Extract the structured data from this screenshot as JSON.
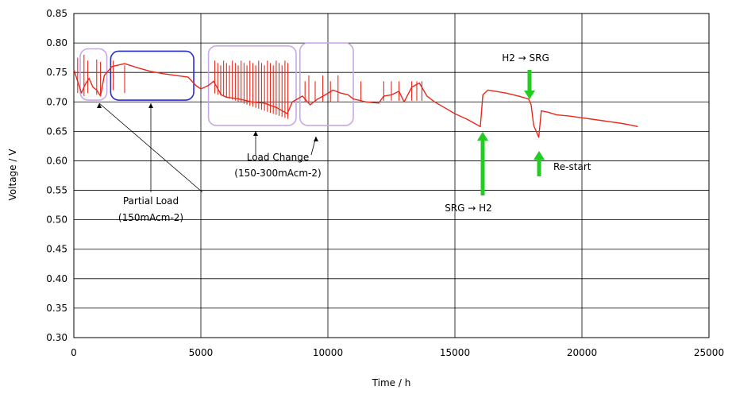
{
  "chart_data": {
    "type": "line",
    "title": "",
    "xlabel": "Time / h",
    "ylabel": "Voltage / V",
    "xlim": [
      0,
      25000
    ],
    "ylim": [
      0.3,
      0.85
    ],
    "x_ticks": [
      "0",
      "5000",
      "10000",
      "15000",
      "20000",
      "25000"
    ],
    "y_ticks": [
      "0.30",
      "0.35",
      "0.40",
      "0.45",
      "0.50",
      "0.55",
      "0.60",
      "0.65",
      "0.70",
      "0.75",
      "0.80",
      "0.85"
    ],
    "grid": true,
    "series": [
      {
        "color": "#e8291c",
        "x": [
          0,
          150,
          300,
          450,
          600,
          750,
          900,
          1050,
          1200,
          1500,
          2000,
          2500,
          3000,
          3500,
          4000,
          4500,
          4800,
          5000,
          5300,
          5500,
          5800,
          6000,
          6500,
          7000,
          7500,
          8000,
          8400,
          8600,
          8800,
          9000,
          9300,
          9600,
          9900,
          10200,
          10500,
          10800,
          11000,
          11500,
          12000,
          12200,
          12500,
          12800,
          13000,
          13300,
          13600,
          13900,
          14200,
          14600,
          15000,
          15500,
          16000,
          16100,
          16300,
          16600,
          17000,
          17500,
          17900,
          18000,
          18100,
          18300,
          18400,
          18700,
          19000,
          19500,
          20000,
          20500,
          21000,
          21500,
          22000,
          22200
        ],
        "y": [
          0.755,
          0.735,
          0.715,
          0.73,
          0.74,
          0.725,
          0.72,
          0.71,
          0.745,
          0.76,
          0.765,
          0.758,
          0.752,
          0.748,
          0.745,
          0.742,
          0.728,
          0.722,
          0.728,
          0.735,
          0.712,
          0.708,
          0.705,
          0.7,
          0.698,
          0.69,
          0.68,
          0.7,
          0.705,
          0.71,
          0.695,
          0.705,
          0.712,
          0.72,
          0.715,
          0.712,
          0.705,
          0.7,
          0.698,
          0.71,
          0.712,
          0.718,
          0.7,
          0.725,
          0.732,
          0.71,
          0.7,
          0.69,
          0.68,
          0.67,
          0.658,
          0.712,
          0.72,
          0.718,
          0.715,
          0.71,
          0.705,
          0.695,
          0.66,
          0.64,
          0.685,
          0.682,
          0.678,
          0.676,
          0.673,
          0.67,
          0.667,
          0.664,
          0.66,
          0.658
        ]
      }
    ],
    "annotations": [
      {
        "text": "Partial Load",
        "color": "#2b2bd4"
      },
      {
        "text": "(150mAcm-2)",
        "color": "#2b2bd4"
      },
      {
        "text": "Load Change",
        "color": "#c9a8e6"
      },
      {
        "text": "(150-300mAcm-2)",
        "color": "#c9a8e6"
      },
      {
        "text": "SRG → H2",
        "color": "#000000"
      },
      {
        "text": "H2 → SRG",
        "color": "#000000"
      },
      {
        "text": "Re-start",
        "color": "#000000"
      }
    ],
    "colors": {
      "partial_load_box": "#2b2bd4",
      "load_change_box": "#c9a8e6",
      "event_arrow": "#22cc22"
    }
  }
}
